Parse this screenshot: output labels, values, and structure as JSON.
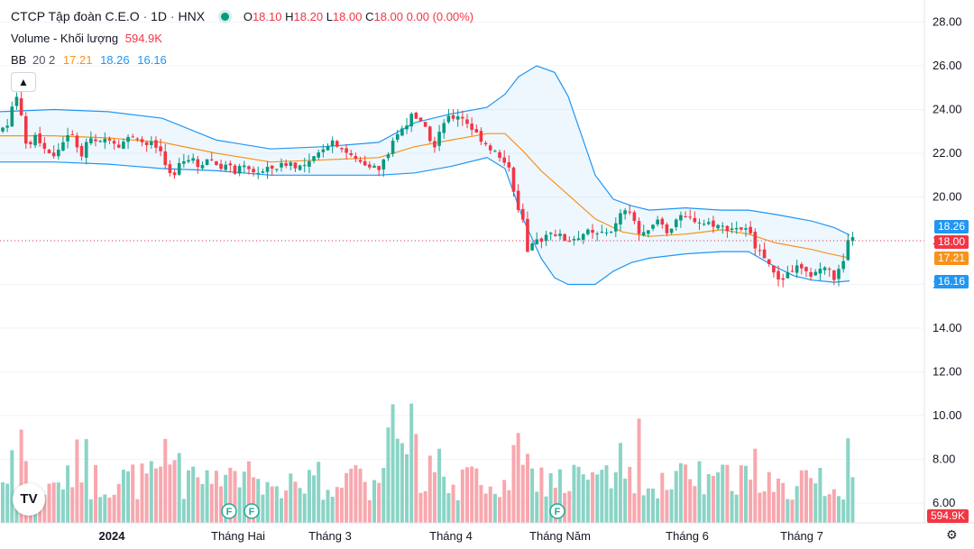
{
  "legend": {
    "name": "CTCP Tập đoàn C.E.O",
    "interval": "1D",
    "exchange": "HNX",
    "ohlc": {
      "o_label": "O",
      "o": "18.10",
      "h_label": "H",
      "h": "18.20",
      "l_label": "L",
      "l": "18.00",
      "c_label": "C",
      "c": "18.00",
      "change": "0.00 (0.00%)"
    },
    "volume_label": "Volume - Khối lượng",
    "volume_value": "594.9K",
    "bb_label": "BB",
    "bb_params": "20 2",
    "bb_basis": "17.21",
    "bb_upper": "18.26",
    "bb_lower": "16.16"
  },
  "axis_badges": {
    "upper": "18.26",
    "last": "18.00",
    "basis": "17.21",
    "lower": "16.16",
    "volume": "594.9K"
  },
  "icons": {
    "collapse": "chevron-up-icon",
    "logo": "tradingview-logo",
    "settings": "gear-icon",
    "dividend": "F"
  },
  "colors": {
    "up": "#089981",
    "down": "#f23645",
    "basis": "#f7931a",
    "band": "#2196f3",
    "up_volume": "#8ad4c6",
    "down_volume": "#f8a7ae"
  },
  "chart_data": {
    "type": "candlestick",
    "title": "CTCP Tập đoàn C.E.O · 1D · HNX",
    "y_ticks": [
      "28.00",
      "26.00",
      "24.00",
      "22.00",
      "20.00",
      "18.00",
      "16.00",
      "14.00",
      "12.00",
      "10.00",
      "8.00",
      "6.00"
    ],
    "x_ticks": [
      "2024",
      "Tháng Hai",
      "Tháng 3",
      "Tháng 4",
      "Tháng Năm",
      "Tháng 6",
      "Tháng 7"
    ],
    "ylim": [
      5.8,
      28.6
    ],
    "last_close": 18.0,
    "price_path": [
      [
        0,
        23.0
      ],
      [
        10,
        23.5
      ],
      [
        18,
        24.8
      ],
      [
        30,
        22.2
      ],
      [
        40,
        22.8
      ],
      [
        50,
        22.2
      ],
      [
        60,
        21.8
      ],
      [
        70,
        22.6
      ],
      [
        80,
        22.8
      ],
      [
        90,
        22.0
      ],
      [
        100,
        22.6
      ],
      [
        110,
        22.4
      ],
      [
        120,
        22.8
      ],
      [
        130,
        22.4
      ],
      [
        140,
        22.6
      ],
      [
        150,
        22.9
      ],
      [
        160,
        22.4
      ],
      [
        170,
        22.4
      ],
      [
        180,
        22.0
      ],
      [
        190,
        20.8
      ],
      [
        200,
        21.8
      ],
      [
        210,
        21.8
      ],
      [
        220,
        21.4
      ],
      [
        230,
        21.8
      ],
      [
        240,
        21.5
      ],
      [
        250,
        21.4
      ],
      [
        260,
        21.2
      ],
      [
        270,
        21.3
      ],
      [
        280,
        21.2
      ],
      [
        290,
        21.1
      ],
      [
        300,
        21.3
      ],
      [
        310,
        21.4
      ],
      [
        320,
        21.6
      ],
      [
        330,
        21.4
      ],
      [
        340,
        21.4
      ],
      [
        350,
        21.8
      ],
      [
        360,
        22.4
      ],
      [
        370,
        22.6
      ],
      [
        380,
        22.2
      ],
      [
        390,
        21.8
      ],
      [
        400,
        21.6
      ],
      [
        410,
        21.5
      ],
      [
        420,
        21.2
      ],
      [
        430,
        22.0
      ],
      [
        440,
        22.8
      ],
      [
        450,
        23.4
      ],
      [
        460,
        23.8
      ],
      [
        470,
        23.2
      ],
      [
        480,
        22.2
      ],
      [
        490,
        23.4
      ],
      [
        500,
        23.6
      ],
      [
        510,
        23.8
      ],
      [
        520,
        23.3
      ],
      [
        530,
        22.8
      ],
      [
        540,
        22.4
      ],
      [
        550,
        22.0
      ],
      [
        560,
        21.4
      ],
      [
        566,
        21.5
      ],
      [
        572,
        19.6
      ],
      [
        580,
        18.8
      ],
      [
        585,
        17.4
      ],
      [
        595,
        18.0
      ],
      [
        602,
        18.1
      ],
      [
        610,
        18.5
      ],
      [
        620,
        18.2
      ],
      [
        630,
        18.0
      ],
      [
        640,
        18.2
      ],
      [
        650,
        18.4
      ],
      [
        660,
        18.2
      ],
      [
        670,
        18.4
      ],
      [
        680,
        18.5
      ],
      [
        690,
        19.3
      ],
      [
        700,
        19.2
      ],
      [
        710,
        18.2
      ],
      [
        720,
        18.4
      ],
      [
        730,
        19.0
      ],
      [
        740,
        18.4
      ],
      [
        750,
        19.0
      ],
      [
        760,
        19.0
      ],
      [
        770,
        19.0
      ],
      [
        780,
        18.8
      ],
      [
        790,
        18.8
      ],
      [
        800,
        18.6
      ],
      [
        810,
        18.6
      ],
      [
        820,
        18.6
      ],
      [
        830,
        18.4
      ],
      [
        840,
        17.6
      ],
      [
        850,
        17.2
      ],
      [
        858,
        16.4
      ],
      [
        866,
        16.2
      ],
      [
        875,
        16.6
      ],
      [
        885,
        16.8
      ],
      [
        895,
        16.4
      ],
      [
        905,
        16.6
      ],
      [
        915,
        16.8
      ],
      [
        925,
        16.3
      ],
      [
        935,
        16.9
      ],
      [
        942,
        18.2
      ],
      [
        946,
        18.0
      ]
    ],
    "basis_path": [
      [
        0,
        22.8
      ],
      [
        60,
        22.8
      ],
      [
        120,
        22.7
      ],
      [
        180,
        22.5
      ],
      [
        240,
        22.0
      ],
      [
        300,
        21.6
      ],
      [
        360,
        21.7
      ],
      [
        420,
        21.8
      ],
      [
        460,
        22.3
      ],
      [
        500,
        22.6
      ],
      [
        540,
        22.9
      ],
      [
        560,
        22.9
      ],
      [
        580,
        22.1
      ],
      [
        600,
        21.2
      ],
      [
        630,
        20.1
      ],
      [
        660,
        19.0
      ],
      [
        690,
        18.4
      ],
      [
        720,
        18.2
      ],
      [
        760,
        18.3
      ],
      [
        800,
        18.5
      ],
      [
        830,
        18.3
      ],
      [
        860,
        17.9
      ],
      [
        900,
        17.6
      ],
      [
        920,
        17.4
      ],
      [
        942,
        17.21
      ]
    ],
    "upper_path": [
      [
        0,
        23.9
      ],
      [
        60,
        24.0
      ],
      [
        120,
        23.9
      ],
      [
        180,
        23.6
      ],
      [
        240,
        22.6
      ],
      [
        300,
        22.2
      ],
      [
        360,
        22.3
      ],
      [
        420,
        22.5
      ],
      [
        460,
        23.4
      ],
      [
        500,
        23.8
      ],
      [
        540,
        24.1
      ],
      [
        560,
        24.7
      ],
      [
        575,
        25.5
      ],
      [
        595,
        26.0
      ],
      [
        615,
        25.7
      ],
      [
        630,
        24.6
      ],
      [
        645,
        22.8
      ],
      [
        660,
        21.0
      ],
      [
        680,
        19.9
      ],
      [
        700,
        19.6
      ],
      [
        720,
        19.4
      ],
      [
        760,
        19.5
      ],
      [
        800,
        19.4
      ],
      [
        830,
        19.4
      ],
      [
        860,
        19.2
      ],
      [
        900,
        18.9
      ],
      [
        925,
        18.6
      ],
      [
        942,
        18.26
      ]
    ],
    "lower_path": [
      [
        0,
        21.6
      ],
      [
        60,
        21.6
      ],
      [
        120,
        21.5
      ],
      [
        180,
        21.3
      ],
      [
        240,
        21.2
      ],
      [
        300,
        21.0
      ],
      [
        360,
        21.0
      ],
      [
        420,
        21.0
      ],
      [
        460,
        21.1
      ],
      [
        500,
        21.4
      ],
      [
        540,
        21.8
      ],
      [
        560,
        21.3
      ],
      [
        580,
        19.0
      ],
      [
        600,
        17.2
      ],
      [
        615,
        16.3
      ],
      [
        630,
        16.0
      ],
      [
        660,
        16.0
      ],
      [
        680,
        16.6
      ],
      [
        700,
        17.0
      ],
      [
        720,
        17.2
      ],
      [
        760,
        17.4
      ],
      [
        800,
        17.5
      ],
      [
        830,
        17.5
      ],
      [
        860,
        16.8
      ],
      [
        880,
        16.4
      ],
      [
        900,
        16.2
      ],
      [
        925,
        16.1
      ],
      [
        942,
        16.16
      ]
    ]
  }
}
